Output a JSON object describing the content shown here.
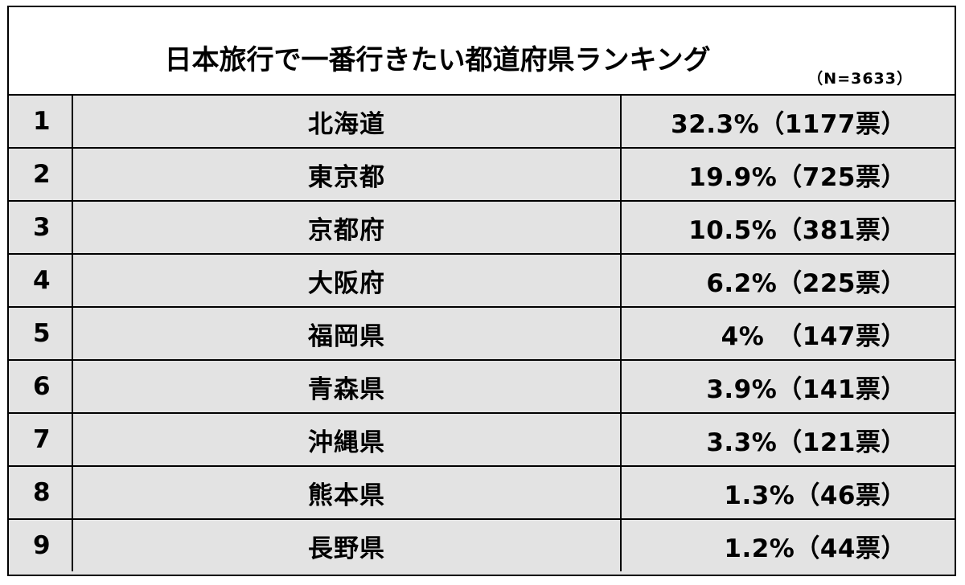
{
  "title": "日本旅行で一番行きたい都道府県ランキング",
  "sample_size": "（N=3633）",
  "rows": [
    {
      "rank": "1",
      "prefecture": "北海道",
      "value": "32.3%（1177票）"
    },
    {
      "rank": "2",
      "prefecture": "東京都",
      "value": "19.9%（725票）"
    },
    {
      "rank": "3",
      "prefecture": "京都府",
      "value": "10.5%（381票）"
    },
    {
      "rank": "4",
      "prefecture": "大阪府",
      "value": "6.2%（225票）"
    },
    {
      "rank": "5",
      "prefecture": "福岡県",
      "value": "4%　（147票）"
    },
    {
      "rank": "6",
      "prefecture": "青森県",
      "value": "3.9%（141票）"
    },
    {
      "rank": "7",
      "prefecture": "沖縄県",
      "value": "3.3%（121票）"
    },
    {
      "rank": "8",
      "prefecture": "熊本県",
      "value": "1.3%（46票）"
    },
    {
      "rank": "9",
      "prefecture": "長野県",
      "value": "1.2%（44票）"
    }
  ]
}
